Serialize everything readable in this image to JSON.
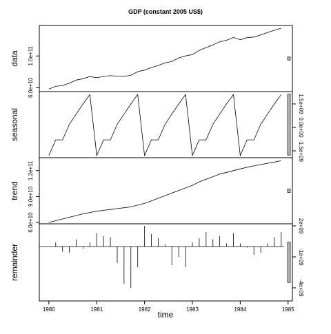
{
  "chart_data": {
    "type": "line",
    "title": "GDP (constant 2005 US$)",
    "xlabel": "time",
    "x": [
      1980,
      1980.143,
      1980.286,
      1980.429,
      1980.571,
      1980.714,
      1980.857,
      1981,
      1981.143,
      1981.286,
      1981.429,
      1981.571,
      1981.714,
      1981.857,
      1982,
      1982.143,
      1982.286,
      1982.429,
      1982.571,
      1982.714,
      1982.857,
      1983,
      1983.143,
      1983.286,
      1983.429,
      1983.571,
      1983.714,
      1983.857,
      1984,
      1984.143,
      1984.286,
      1984.429,
      1984.571,
      1984.714,
      1984.857
    ],
    "xlim": [
      1979.8,
      1985.09
    ],
    "xticks": [
      1980,
      1981,
      1982,
      1983,
      1984,
      1985
    ],
    "panels": [
      {
        "name": "data",
        "type": "line",
        "side": "left",
        "ylim": [
          55000000000.0,
          138500000000.0
        ],
        "yticks": [
          {
            "value": 60000000000.0,
            "label": "6.0e+10"
          },
          {
            "value": 100000000000.0,
            "label": "1.0e+11"
          }
        ],
        "values": [
          58200000000.0,
          61600000000.0,
          62700000000.0,
          65600000000.0,
          69550000000.0,
          71300000000.0,
          74000000000.0,
          72500000000.0,
          74200000000.0,
          75100000000.0,
          74600000000.0,
          74250000000.0,
          75500000000.0,
          80100000000.0,
          82200000000.0,
          85400000000.0,
          88000000000.0,
          91400000000.0,
          93050000000.0,
          97500000000.0,
          100100000000.0,
          101600000000.0,
          107000000000.0,
          110600000000.0,
          113900000000.0,
          117850000000.0,
          119800000000.0,
          123400000000.0,
          120500000000.0,
          123100000000.0,
          123900000000.0,
          126600000000.0,
          129650000000.0,
          132400000000.0,
          135000000000.0
        ]
      },
      {
        "name": "seasonal",
        "type": "line",
        "side": "right",
        "ylim": [
          -1940000000.0,
          2290000000.0
        ],
        "yticks": [
          {
            "value": -1500000000.0,
            "label": "-1.5e+09"
          },
          {
            "value": 0,
            "label": "0.0e+00"
          },
          {
            "value": 1500000000.0,
            "label": "1.5e+09"
          }
        ],
        "values": [
          -1800000000.0,
          -800000000.0,
          -800000000.0,
          200000000.0,
          850000000.0,
          1500000000.0,
          2100000000.0,
          -1800000000.0,
          -800000000.0,
          -800000000.0,
          200000000.0,
          850000000.0,
          1500000000.0,
          2100000000.0,
          -1800000000.0,
          -800000000.0,
          -800000000.0,
          200000000.0,
          850000000.0,
          1500000000.0,
          2100000000.0,
          -1800000000.0,
          -800000000.0,
          -800000000.0,
          200000000.0,
          850000000.0,
          1500000000.0,
          2100000000.0,
          -1800000000.0,
          -800000000.0,
          -800000000.0,
          200000000.0,
          850000000.0,
          1500000000.0,
          2100000000.0
        ]
      },
      {
        "name": "trend",
        "type": "line",
        "side": "left",
        "ylim": [
          58400000000.0,
          135000000000.0
        ],
        "yticks": [
          {
            "value": 60000000000.0,
            "label": "6.0e+10"
          },
          {
            "value": 90000000000.0,
            "label": "9.0e+10"
          },
          {
            "value": 120000000000.0,
            "label": "1.2e+11"
          }
        ],
        "values": [
          60000000000.0,
          62000000000.0,
          64000000000.0,
          66000000000.0,
          68000000000.0,
          70000000000.0,
          71500000000.0,
          73000000000.0,
          74000000000.0,
          75000000000.0,
          76000000000.0,
          77000000000.0,
          78000000000.0,
          80000000000.0,
          82000000000.0,
          85000000000.0,
          88000000000.0,
          91000000000.0,
          94000000000.0,
          97000000000.0,
          100000000000.0,
          103000000000.0,
          107000000000.0,
          110000000000.0,
          113000000000.0,
          116000000000.0,
          118000000000.0,
          120000000000.0,
          122000000000.0,
          124000000000.0,
          125500000000.0,
          127000000000.0,
          128500000000.0,
          130000000000.0,
          131500000000.0
        ]
      },
      {
        "name": "remainder",
        "type": "spike",
        "side": "right",
        "ylim": [
          -5270000000.0,
          2200000000.0
        ],
        "yticks": [
          {
            "value": -4000000000.0,
            "label": "-4e+09"
          },
          {
            "value": -1000000000.0,
            "label": "-1e+09"
          },
          {
            "value": 2000000000.0,
            "label": "2e+09"
          }
        ],
        "values": [
          0,
          400000000.0,
          -500000000.0,
          -600000000.0,
          700000000.0,
          -200000000.0,
          400000000.0,
          1300000000.0,
          1000000000.0,
          900000000.0,
          -1600000000.0,
          -3600000000.0,
          -4000000000.0,
          -2000000000.0,
          2000000000.0,
          1200000000.0,
          800000000.0,
          200000000.0,
          -1800000000.0,
          -1000000000.0,
          -2000000000.0,
          400000000.0,
          800000000.0,
          1400000000.0,
          700000000.0,
          1000000000.0,
          300000000.0,
          1300000000.0,
          300000000.0,
          -100000000.0,
          -800000000.0,
          -600000000.0,
          300000000.0,
          900000000.0,
          1400000000.0
        ]
      }
    ]
  }
}
